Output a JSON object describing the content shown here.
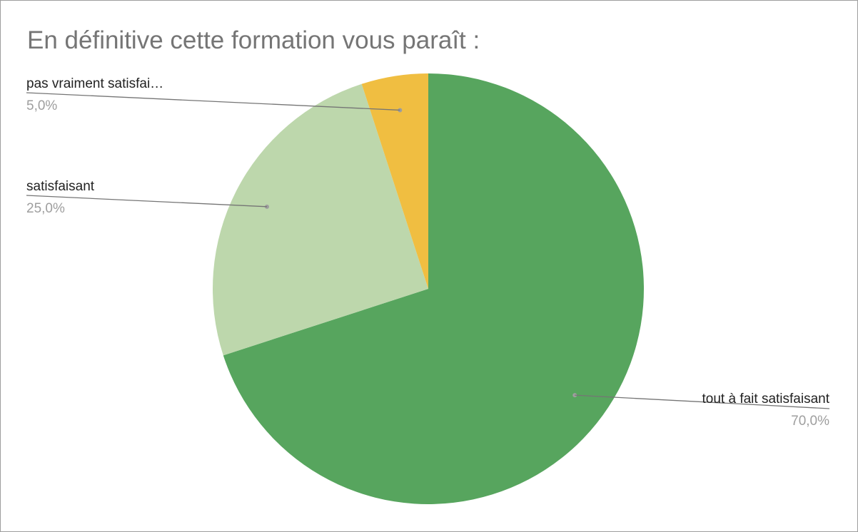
{
  "chart_data": {
    "type": "pie",
    "title": "En définitive cette formation vous paraît :",
    "slices": [
      {
        "label": "tout à fait satisfaisant",
        "display_label": "tout à fait satisfaisant",
        "value": 70.0,
        "percent_label": "70,0%",
        "color": "#57a55e"
      },
      {
        "label": "satisfaisant",
        "display_label": "satisfaisant",
        "value": 25.0,
        "percent_label": "25,0%",
        "color": "#bdd7ac"
      },
      {
        "label": "pas vraiment satisfaisant",
        "display_label": "pas vraiment satisfai…",
        "value": 5.0,
        "percent_label": "5,0%",
        "color": "#f0be41"
      }
    ],
    "start_angle": "12 o'clock",
    "direction": "clockwise",
    "legend": "none",
    "labels": "outside with leader lines"
  }
}
